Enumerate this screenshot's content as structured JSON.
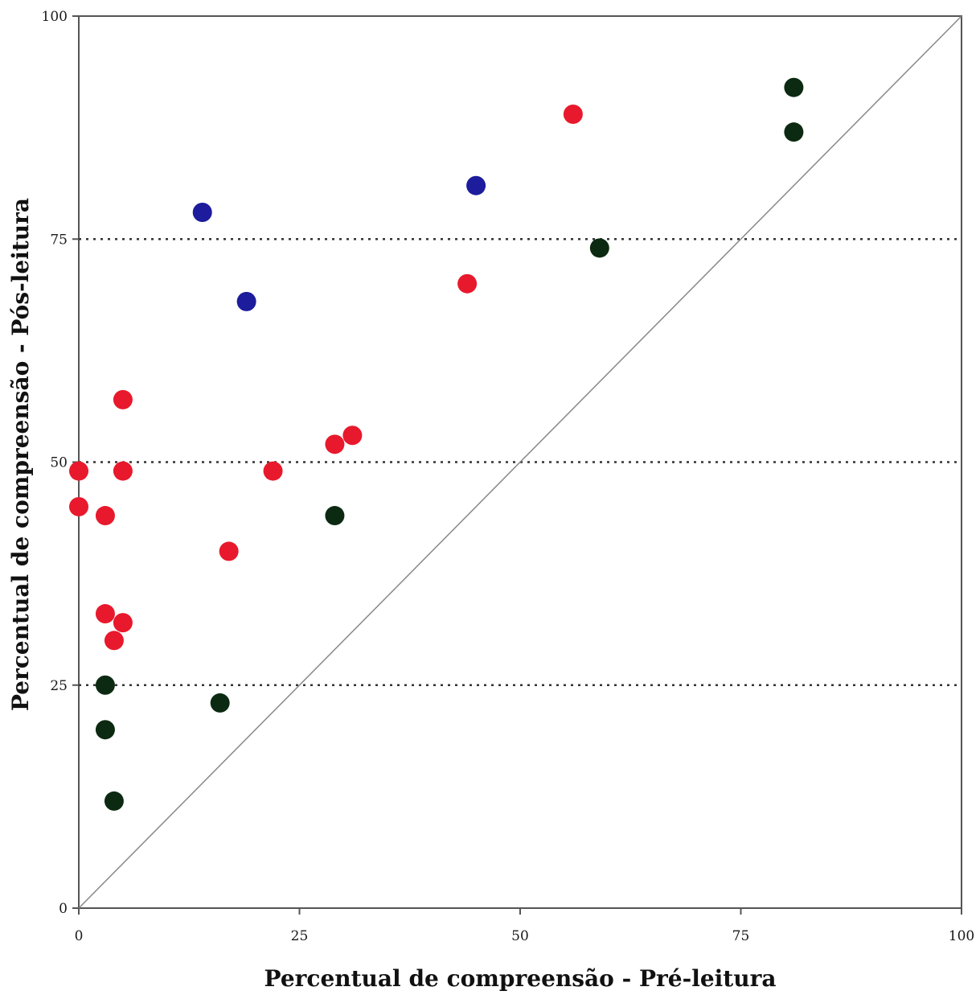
{
  "chart_data": {
    "type": "scatter",
    "title": "",
    "xlabel": "Percentual de compreensão - Pré-leitura",
    "ylabel": "Percentual de compreensão - Pós-leitura",
    "xlim": [
      0,
      100
    ],
    "ylim": [
      0,
      100
    ],
    "x_ticks": [
      "0",
      "25",
      "50",
      "75",
      "100"
    ],
    "y_ticks": [
      "0",
      "25",
      "50",
      "75",
      "100"
    ],
    "reference_lines": [
      {
        "type": "horizontal",
        "y": 25,
        "style": "dotted"
      },
      {
        "type": "horizontal",
        "y": 50,
        "style": "dotted"
      },
      {
        "type": "horizontal",
        "y": 75,
        "style": "dotted"
      },
      {
        "type": "diagonal",
        "from": [
          0,
          0
        ],
        "to": [
          100,
          100
        ],
        "style": "solid"
      }
    ],
    "grid": false,
    "series": [
      {
        "color": "#e8192c",
        "points": [
          {
            "x": 0,
            "y": 49
          },
          {
            "x": 0,
            "y": 45
          },
          {
            "x": 3,
            "y": 44
          },
          {
            "x": 3,
            "y": 33
          },
          {
            "x": 4,
            "y": 30
          },
          {
            "x": 5,
            "y": 32
          },
          {
            "x": 5,
            "y": 49
          },
          {
            "x": 5,
            "y": 57
          },
          {
            "x": 17,
            "y": 40
          },
          {
            "x": 22,
            "y": 49
          },
          {
            "x": 29,
            "y": 52
          },
          {
            "x": 31,
            "y": 53
          },
          {
            "x": 44,
            "y": 70
          },
          {
            "x": 56,
            "y": 89
          }
        ]
      },
      {
        "color": "#1c1c9c",
        "points": [
          {
            "x": 14,
            "y": 78
          },
          {
            "x": 19,
            "y": 68
          },
          {
            "x": 45,
            "y": 81
          }
        ]
      },
      {
        "color": "#0c2a12",
        "points": [
          {
            "x": 3,
            "y": 25
          },
          {
            "x": 3,
            "y": 20
          },
          {
            "x": 4,
            "y": 12
          },
          {
            "x": 16,
            "y": 23
          },
          {
            "x": 29,
            "y": 44
          },
          {
            "x": 59,
            "y": 74
          },
          {
            "x": 81,
            "y": 87
          },
          {
            "x": 81,
            "y": 92
          }
        ]
      }
    ]
  }
}
